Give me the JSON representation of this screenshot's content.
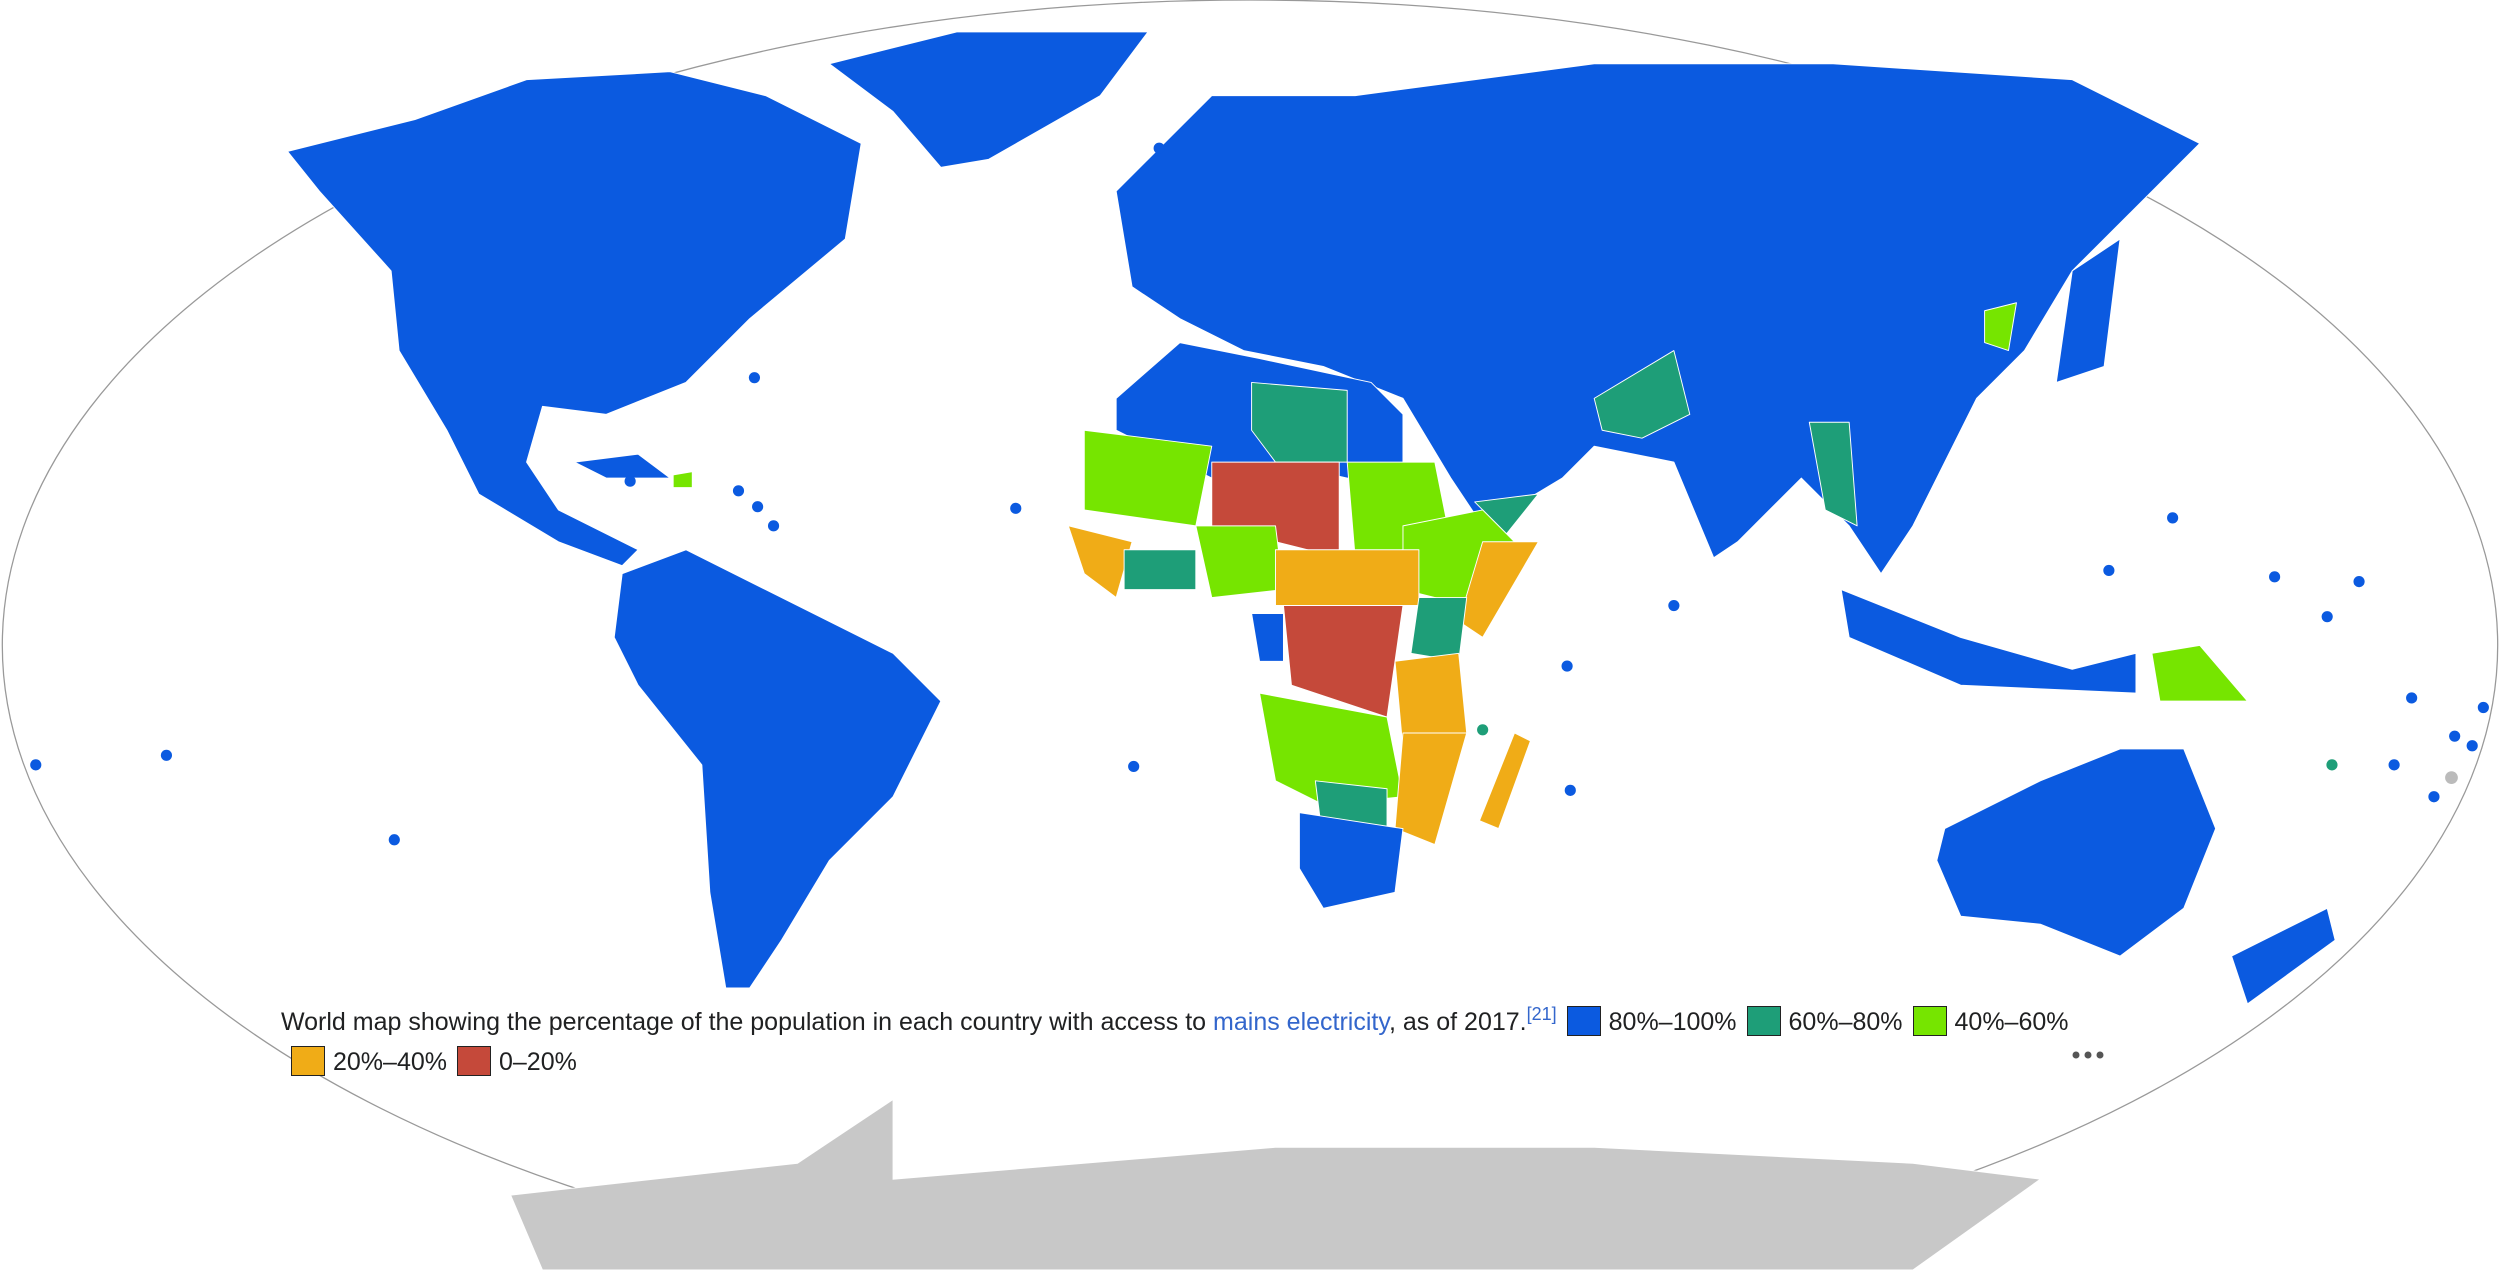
{
  "caption": {
    "text": "World map showing the percentage of the population in each country with access to ",
    "link": "mains electricity",
    "after_link": ", as of 2017.",
    "reference": "[21]"
  },
  "legend": [
    {
      "label": "80%–100%",
      "color": "#0b5ae0"
    },
    {
      "label": "60%–80%",
      "color": "#1e9e78"
    },
    {
      "label": "40%–60%",
      "color": "#76e500"
    },
    {
      "label": "20%–40%",
      "color": "#f0ac17"
    },
    {
      "label": "0–20%",
      "color": "#c5493a"
    }
  ]
}
